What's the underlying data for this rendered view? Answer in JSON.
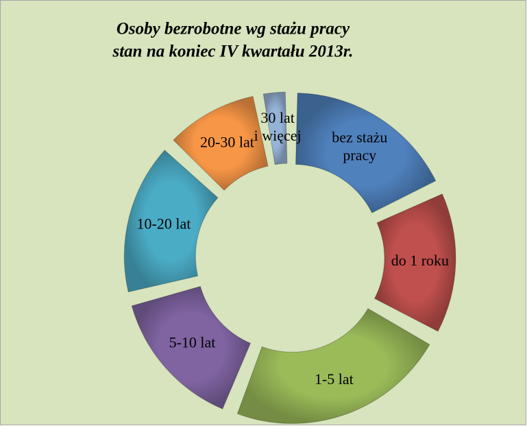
{
  "chart_data": {
    "type": "donut",
    "title": [
      "Osoby bezrobotne wg stażu pracy",
      "stan na koniec IV kwartału 2013r."
    ],
    "categories": [
      "bez stażu\npracy",
      "do 1 roku",
      "1-5 lat",
      "5-10 lat",
      "10-20 lat",
      "20-30 lat",
      "30 lat\ni więcej"
    ],
    "values": [
      18,
      15,
      23,
      15,
      16,
      10,
      3
    ],
    "colors": [
      "#4f81bd",
      "#c0504d",
      "#9bbb59",
      "#8064a2",
      "#4bacc6",
      "#f79646",
      "#95b3d7"
    ]
  }
}
